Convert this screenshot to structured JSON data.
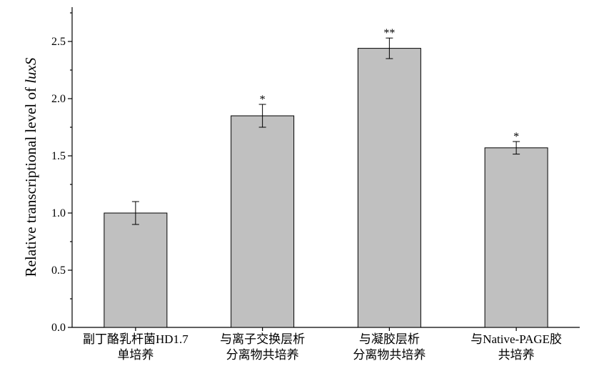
{
  "chart_data": {
    "type": "bar",
    "title": "",
    "xlabel": "",
    "ylabel_prefix": "Relative transcriptional level of ",
    "ylabel_gene": "luxS",
    "ylim": [
      0.0,
      2.8
    ],
    "yticks": [
      "0.0",
      "0.5",
      "1.0",
      "1.5",
      "2.0",
      "2.5"
    ],
    "ytick_values": [
      0.0,
      0.5,
      1.0,
      1.5,
      2.0,
      2.5
    ],
    "categories": [
      [
        "副丁酪乳杆菌HD1.7",
        "单培养"
      ],
      [
        "与离子交换层析",
        "分离物共培养"
      ],
      [
        "与凝胶层析",
        "分离物共培养"
      ],
      [
        "与Native-PAGE胶",
        "共培养"
      ]
    ],
    "values": [
      1.0,
      1.85,
      2.44,
      1.57
    ],
    "errors": [
      0.1,
      0.1,
      0.09,
      0.055
    ],
    "significance": [
      "",
      "*",
      "**",
      "*"
    ],
    "bar_color": "#c0c0c0",
    "grid": false
  }
}
